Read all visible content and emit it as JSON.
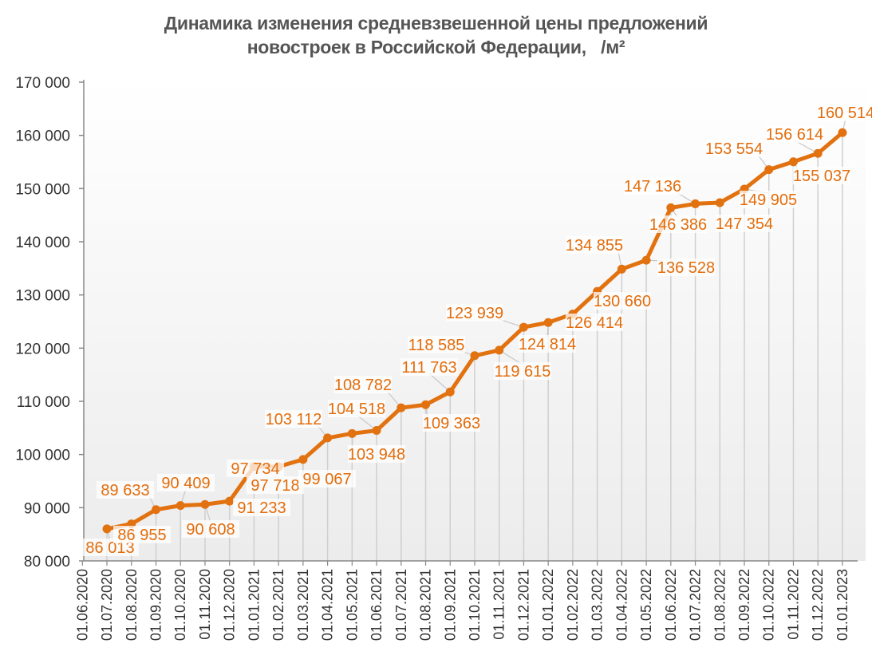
{
  "chart_data": {
    "type": "line",
    "title": [
      "Динамика изменения средневзвешенной цены предложений",
      "новостроек в Российской Федерации,   /м²"
    ],
    "xlabel": "",
    "ylabel": "",
    "ylim": [
      80000,
      170000
    ],
    "yticks": [
      80000,
      90000,
      100000,
      110000,
      120000,
      130000,
      140000,
      150000,
      160000,
      170000
    ],
    "ytick_labels": [
      "80 000",
      "90 000",
      "100 000",
      "110 000",
      "120 000",
      "130 000",
      "140 000",
      "150 000",
      "160 000",
      "170 000"
    ],
    "categories": [
      "01.06.2020",
      "01.07.2020",
      "01.08.2020",
      "01.09.2020",
      "01.10.2020",
      "01.11.2020",
      "01.12.2020",
      "01.01.2021",
      "01.02.2021",
      "01.03.2021",
      "01.04.2021",
      "01.05.2021",
      "01.06.2021",
      "01.07.2021",
      "01.08.2021",
      "01.09.2021",
      "01.10.2021",
      "01.11.2021",
      "01.12.2021",
      "01.01.2022",
      "01.02.2022",
      "01.03.2022",
      "01.04.2022",
      "01.05.2022",
      "01.06.2022",
      "01.07.2022",
      "01.08.2022",
      "01.09.2022",
      "01.10.2022",
      "01.11.2022",
      "01.12.2022",
      "01.01.2023"
    ],
    "values": [
      null,
      86013,
      86955,
      89633,
      90409,
      90608,
      91233,
      97734,
      97718,
      99067,
      103112,
      103948,
      104518,
      108782,
      109363,
      111763,
      118585,
      119615,
      123939,
      124814,
      126414,
      130660,
      134855,
      136528,
      146386,
      147136,
      147354,
      149905,
      153554,
      155037,
      156614,
      160514
    ],
    "data_labels": [
      null,
      "86 013",
      "86 955",
      "89 633",
      "90 409",
      "90 608",
      "91 233",
      "97 734",
      "97 718",
      "99 067",
      "103 112",
      "103 948",
      "104 518",
      "108 782",
      "109 363",
      "111 763",
      "118 585",
      "119 615",
      "123 939",
      "124 814",
      "126 414",
      "130 660",
      "134 855",
      "136 528",
      "146 386",
      "147 136",
      "147 354",
      "149 905",
      "153 554",
      "155 037",
      "156 614",
      "160 514"
    ],
    "grid": false,
    "drop_lines": true,
    "legend": "none",
    "colors": {
      "line": "#e2710f",
      "labels": "#e36c0a",
      "text": "#555555",
      "background": "#f2f2f2"
    }
  }
}
